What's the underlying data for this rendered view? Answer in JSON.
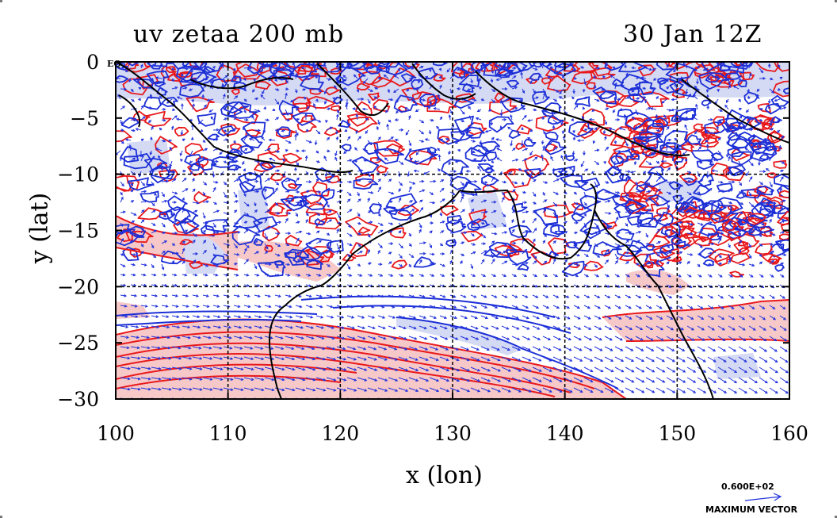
{
  "header": {
    "title_left": "uv zetaa 200 mb",
    "title_right": "30 Jan 12Z"
  },
  "axes": {
    "x_title": "x (lon)",
    "y_title": "y (lat)",
    "x_ticks": [
      "100",
      "110",
      "120",
      "130",
      "140",
      "150",
      "160"
    ],
    "y_ticks": [
      "0",
      "−5",
      "−10",
      "−15",
      "−20",
      "−25",
      "−30"
    ],
    "x_range": [
      100,
      160
    ],
    "y_range": [
      -30,
      0
    ],
    "grid_lon": [
      110,
      120,
      130,
      140,
      150
    ],
    "grid_lat": [
      -10,
      -20
    ]
  },
  "map_labels": {
    "eq_label": "EQ"
  },
  "legend": {
    "vector_value": "0.600E+02",
    "vector_label": "MAXIMUM VECTOR"
  },
  "colors": {
    "positive_contour": "#e8191c",
    "positive_fill": "#f7c8c8",
    "negative_contour": "#1c2fd6",
    "negative_fill": "#d4d9f4",
    "vector": "#2233dd",
    "coast": "#000000"
  }
}
